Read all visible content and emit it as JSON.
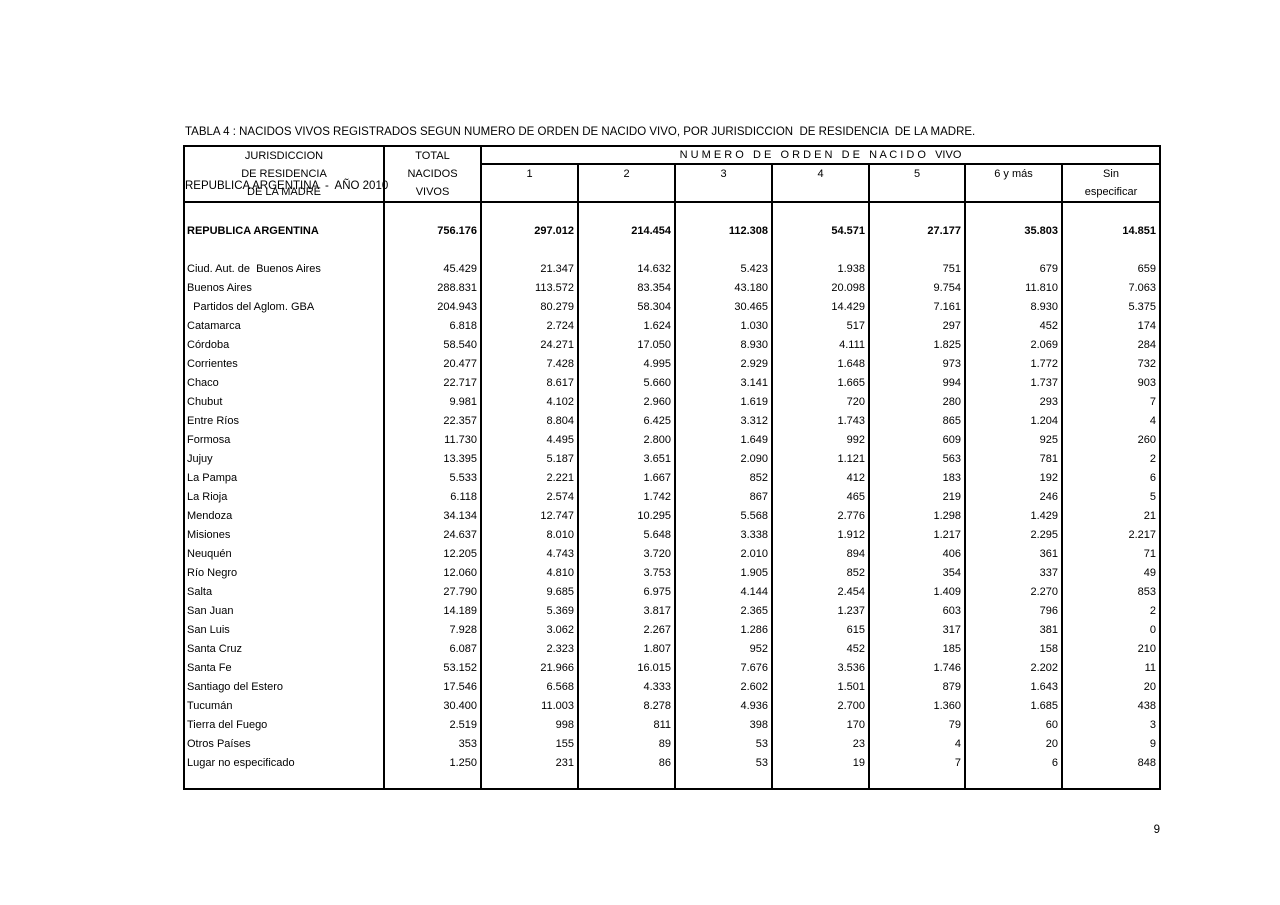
{
  "colors": {
    "text": "#000000",
    "background": "#ffffff",
    "border": "#000000"
  },
  "title": {
    "line1": "TABLA 4 : NACIDOS VIVOS REGISTRADOS SEGUN NUMERO DE ORDEN DE NACIDO VIVO, POR JURISDICCION  DE RESIDENCIA  DE LA MADRE.",
    "line2": "REPUBLICA ARGENTINA  -  AÑO 2010"
  },
  "page": {
    "number": "9"
  },
  "table": {
    "header": {
      "col1_lines": [
        "JURISDICCION",
        "DE RESIDENCIA",
        "DE LA MADRE"
      ],
      "col2_lines": [
        "TOTAL",
        "NACIDOS",
        "VIVOS"
      ],
      "span_label": "N U M E R O   D E   O R D E N   D E   N A C I D O   VIVO",
      "order_cols": [
        "1",
        "2",
        "3",
        "4",
        "5",
        "6 y más"
      ],
      "sin_line1": "Sin",
      "sin_line2": "especificar"
    },
    "total_row": {
      "label": "REPUBLICA ARGENTINA",
      "values": [
        "756.176",
        "297.012",
        "214.454",
        "112.308",
        "54.571",
        "27.177",
        "35.803",
        "14.851"
      ]
    },
    "rows": [
      {
        "label": "Ciud. Aut. de  Buenos Aires",
        "values": [
          "45.429",
          "21.347",
          "14.632",
          "5.423",
          "1.938",
          "751",
          "679",
          "659"
        ]
      },
      {
        "label": "Buenos Aires",
        "values": [
          "288.831",
          "113.572",
          "83.354",
          "43.180",
          "20.098",
          "9.754",
          "11.810",
          "7.063"
        ]
      },
      {
        "label": "  Partidos del Aglom. GBA",
        "values": [
          "204.943",
          "80.279",
          "58.304",
          "30.465",
          "14.429",
          "7.161",
          "8.930",
          "5.375"
        ]
      },
      {
        "label": "Catamarca",
        "values": [
          "6.818",
          "2.724",
          "1.624",
          "1.030",
          "517",
          "297",
          "452",
          "174"
        ]
      },
      {
        "label": "Córdoba",
        "values": [
          "58.540",
          "24.271",
          "17.050",
          "8.930",
          "4.111",
          "1.825",
          "2.069",
          "284"
        ]
      },
      {
        "label": "Corrientes",
        "values": [
          "20.477",
          "7.428",
          "4.995",
          "2.929",
          "1.648",
          "973",
          "1.772",
          "732"
        ]
      },
      {
        "label": "Chaco",
        "values": [
          "22.717",
          "8.617",
          "5.660",
          "3.141",
          "1.665",
          "994",
          "1.737",
          "903"
        ]
      },
      {
        "label": "Chubut",
        "values": [
          "9.981",
          "4.102",
          "2.960",
          "1.619",
          "720",
          "280",
          "293",
          "7"
        ]
      },
      {
        "label": "Entre Ríos",
        "values": [
          "22.357",
          "8.804",
          "6.425",
          "3.312",
          "1.743",
          "865",
          "1.204",
          "4"
        ]
      },
      {
        "label": "Formosa",
        "values": [
          "11.730",
          "4.495",
          "2.800",
          "1.649",
          "992",
          "609",
          "925",
          "260"
        ]
      },
      {
        "label": "Jujuy",
        "values": [
          "13.395",
          "5.187",
          "3.651",
          "2.090",
          "1.121",
          "563",
          "781",
          "2"
        ]
      },
      {
        "label": "La Pampa",
        "values": [
          "5.533",
          "2.221",
          "1.667",
          "852",
          "412",
          "183",
          "192",
          "6"
        ]
      },
      {
        "label": "La Rioja",
        "values": [
          "6.118",
          "2.574",
          "1.742",
          "867",
          "465",
          "219",
          "246",
          "5"
        ]
      },
      {
        "label": "Mendoza",
        "values": [
          "34.134",
          "12.747",
          "10.295",
          "5.568",
          "2.776",
          "1.298",
          "1.429",
          "21"
        ]
      },
      {
        "label": "Misiones",
        "values": [
          "24.637",
          "8.010",
          "5.648",
          "3.338",
          "1.912",
          "1.217",
          "2.295",
          "2.217"
        ]
      },
      {
        "label": "Neuquén",
        "values": [
          "12.205",
          "4.743",
          "3.720",
          "2.010",
          "894",
          "406",
          "361",
          "71"
        ]
      },
      {
        "label": "Río Negro",
        "values": [
          "12.060",
          "4.810",
          "3.753",
          "1.905",
          "852",
          "354",
          "337",
          "49"
        ]
      },
      {
        "label": "Salta",
        "values": [
          "27.790",
          "9.685",
          "6.975",
          "4.144",
          "2.454",
          "1.409",
          "2.270",
          "853"
        ]
      },
      {
        "label": "San Juan",
        "values": [
          "14.189",
          "5.369",
          "3.817",
          "2.365",
          "1.237",
          "603",
          "796",
          "2"
        ]
      },
      {
        "label": "San Luis",
        "values": [
          "7.928",
          "3.062",
          "2.267",
          "1.286",
          "615",
          "317",
          "381",
          "0"
        ]
      },
      {
        "label": "Santa Cruz",
        "values": [
          "6.087",
          "2.323",
          "1.807",
          "952",
          "452",
          "185",
          "158",
          "210"
        ]
      },
      {
        "label": "Santa Fe",
        "values": [
          "53.152",
          "21.966",
          "16.015",
          "7.676",
          "3.536",
          "1.746",
          "2.202",
          "11"
        ]
      },
      {
        "label": "Santiago del Estero",
        "values": [
          "17.546",
          "6.568",
          "4.333",
          "2.602",
          "1.501",
          "879",
          "1.643",
          "20"
        ]
      },
      {
        "label": "Tucumán",
        "values": [
          "30.400",
          "11.003",
          "8.278",
          "4.936",
          "2.700",
          "1.360",
          "1.685",
          "438"
        ]
      },
      {
        "label": "Tierra del Fuego",
        "values": [
          "2.519",
          "998",
          "811",
          "398",
          "170",
          "79",
          "60",
          "3"
        ]
      },
      {
        "label": "Otros Países",
        "values": [
          "353",
          "155",
          "89",
          "53",
          "23",
          "4",
          "20",
          "9"
        ]
      },
      {
        "label": "Lugar no especificado",
        "values": [
          "1.250",
          "231",
          "86",
          "53",
          "19",
          "7",
          "6",
          "848"
        ]
      }
    ]
  }
}
